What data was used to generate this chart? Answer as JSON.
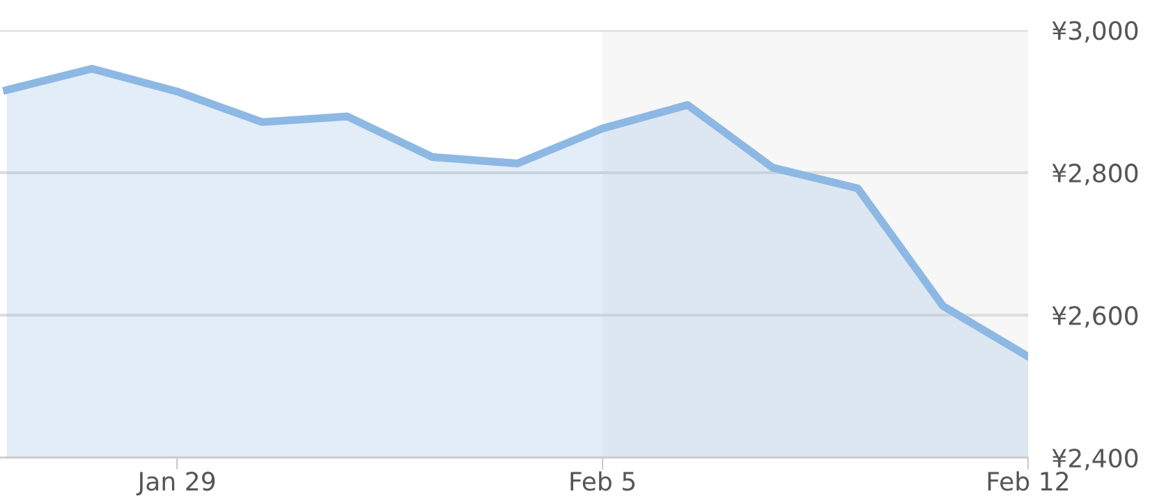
{
  "chart_data": {
    "type": "area",
    "categories": [
      null,
      null,
      "Jan 29",
      null,
      null,
      null,
      null,
      "Feb 5",
      null,
      null,
      null,
      null,
      "Feb 12"
    ],
    "series": [
      {
        "color": "#8db8e3",
        "values": [
          2916,
          2946,
          2914,
          2871,
          2879,
          2822,
          2813,
          2862,
          2895,
          2807,
          2778,
          2613,
          2542
        ]
      }
    ],
    "ylim": [
      2400,
      3000
    ],
    "yticks": [
      {
        "value": 2400,
        "label": "¥2,400"
      },
      {
        "value": 2600,
        "label": "¥2,600"
      },
      {
        "value": 2800,
        "label": "¥2,800"
      },
      {
        "value": 3000,
        "label": "¥3,000"
      }
    ],
    "bands": [
      {
        "axis": "x",
        "from": "Feb 5",
        "to": "Feb 12",
        "color": "#f7f7f7"
      }
    ],
    "grid": "y"
  }
}
